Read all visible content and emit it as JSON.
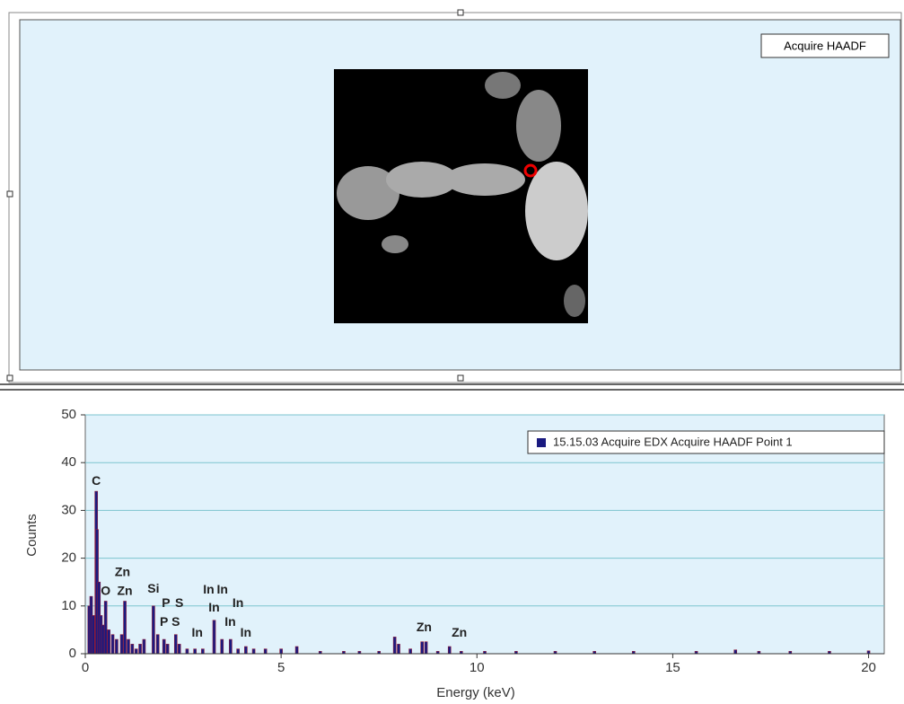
{
  "ui": {
    "haadf_button": "Acquire HAADF"
  },
  "chart_data": {
    "type": "bar",
    "xlabel": "Energy (keV)",
    "ylabel": "Counts",
    "xlim": [
      0,
      20.4
    ],
    "xticks": [
      0,
      5,
      10,
      15,
      20
    ],
    "ylim": [
      0,
      50
    ],
    "yticks": [
      0,
      10,
      20,
      30,
      40,
      50
    ],
    "grid": true,
    "legend": "upper right",
    "x": [
      0.1,
      0.15,
      0.2,
      0.28,
      0.3,
      0.35,
      0.4,
      0.45,
      0.52,
      0.6,
      0.7,
      0.8,
      0.93,
      1.01,
      1.1,
      1.2,
      1.3,
      1.4,
      1.5,
      1.74,
      1.85,
      2.01,
      2.1,
      2.31,
      2.4,
      2.6,
      2.8,
      3.0,
      3.29,
      3.49,
      3.71,
      3.9,
      4.1,
      4.3,
      4.6,
      5.0,
      5.4,
      6.0,
      6.6,
      7.0,
      7.5,
      7.9,
      8.0,
      8.3,
      8.6,
      8.7,
      9.0,
      9.3,
      9.6,
      10.2,
      11,
      12,
      13,
      14,
      15.6,
      16.6,
      17.2,
      18,
      19,
      20
    ],
    "series": [
      {
        "name": "15.15.03 Acquire EDX Acquire HAADF Point 1",
        "color": "#1a1a80",
        "values": [
          10,
          12,
          8,
          34,
          26,
          15,
          8,
          6,
          11,
          5,
          4,
          3,
          4,
          11,
          3,
          2,
          1,
          2,
          3,
          10,
          4,
          3,
          2,
          4,
          2,
          1,
          1,
          1,
          7,
          3,
          3,
          1,
          1.5,
          1,
          1,
          1,
          1.5,
          0.5,
          0.5,
          0.5,
          0.5,
          3.5,
          2,
          1,
          2.5,
          2.5,
          0.5,
          1.5,
          0.5,
          0.5,
          0.5,
          0.5,
          0.5,
          0.5,
          0.5,
          0.8,
          0.5,
          0.5,
          0.5,
          0.6
        ]
      }
    ],
    "peak_color": "#8b1a3a",
    "annotations": [
      {
        "text": "C",
        "x": 0.28,
        "y": 36
      },
      {
        "text": "Zn",
        "x": 0.95,
        "y": 17
      },
      {
        "text": "O",
        "x": 0.52,
        "y": 13
      },
      {
        "text": "Zn",
        "x": 1.01,
        "y": 13
      },
      {
        "text": "Si",
        "x": 1.74,
        "y": 13.5
      },
      {
        "text": "P",
        "x": 2.06,
        "y": 10.5
      },
      {
        "text": "S",
        "x": 2.4,
        "y": 10.5
      },
      {
        "text": "P",
        "x": 2.01,
        "y": 6.5
      },
      {
        "text": "S",
        "x": 2.31,
        "y": 6.5
      },
      {
        "text": "In",
        "x": 3.15,
        "y": 13.3
      },
      {
        "text": "In",
        "x": 3.5,
        "y": 13.3
      },
      {
        "text": "In",
        "x": 3.29,
        "y": 9.5
      },
      {
        "text": "In",
        "x": 3.9,
        "y": 10.5
      },
      {
        "text": "In",
        "x": 3.7,
        "y": 6.5
      },
      {
        "text": "In",
        "x": 2.86,
        "y": 4.3
      },
      {
        "text": "In",
        "x": 4.1,
        "y": 4.3
      },
      {
        "text": "Zn",
        "x": 8.65,
        "y": 5.4
      },
      {
        "text": "Zn",
        "x": 9.55,
        "y": 4.3
      }
    ]
  }
}
